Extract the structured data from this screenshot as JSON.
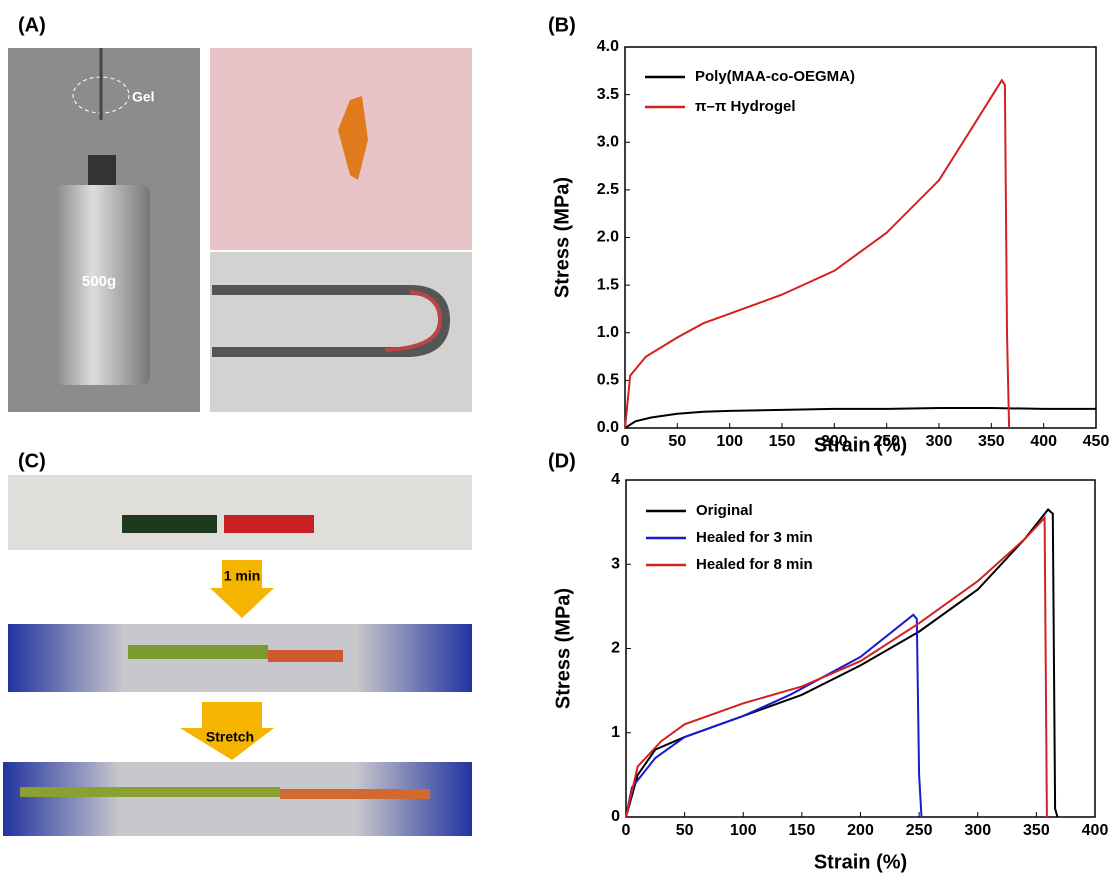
{
  "photos": {
    "panel_a": "(A)",
    "gel": "Gel",
    "weight": "500g",
    "panel_c": "(C)",
    "step1": "1 min",
    "step2": "Stretch"
  },
  "chart_data": [
    {
      "type": "line",
      "panel": "(B)",
      "x_label": "Strain (%)",
      "y_label": "Stress (MPa)",
      "legend": "upper left",
      "xlim": [
        0,
        450
      ],
      "xticks": [
        0,
        50,
        100,
        150,
        200,
        250,
        300,
        350,
        400,
        450
      ],
      "ylim": [
        0,
        4
      ],
      "yticks": [
        {
          "value": 0,
          "label": "0.0"
        },
        0.5,
        {
          "value": 1,
          "label": "1.0"
        },
        1.5,
        {
          "value": 2,
          "label": "2.0"
        },
        2.5,
        {
          "value": 3,
          "label": "3.0"
        },
        3.5,
        {
          "value": 4,
          "label": "4.0"
        }
      ],
      "series": [
        {
          "name": "Poly(MAA-co-OEGMA)",
          "color": "#000000",
          "x": [
            0,
            10,
            25,
            50,
            75,
            100,
            150,
            200,
            250,
            300,
            350,
            400,
            450
          ],
          "values": [
            0,
            0.07,
            0.11,
            0.15,
            0.17,
            0.18,
            0.19,
            0.2,
            0.2,
            0.21,
            0.21,
            0.2,
            0.2
          ]
        },
        {
          "name": "π–π Hydrogel",
          "color": "#d42020",
          "x": [
            0,
            5,
            20,
            50,
            75,
            100,
            150,
            200,
            250,
            300,
            340,
            360,
            363,
            365,
            367
          ],
          "values": [
            0,
            0.55,
            0.75,
            0.95,
            1.1,
            1.2,
            1.4,
            1.65,
            2.05,
            2.6,
            3.3,
            3.65,
            3.6,
            1.0,
            0
          ]
        }
      ]
    },
    {
      "type": "line",
      "panel": "(D)",
      "x_label": "Strain (%)",
      "y_label": "Stress (MPa)",
      "legend": "upper left",
      "xlim": [
        0,
        400
      ],
      "xticks": [
        0,
        50,
        100,
        150,
        200,
        250,
        300,
        350,
        400
      ],
      "ylim": [
        0,
        4
      ],
      "yticks": [
        0,
        1,
        2,
        3,
        4
      ],
      "series": [
        {
          "name": "Original",
          "color": "#000000",
          "x": [
            0,
            10,
            25,
            50,
            100,
            150,
            200,
            250,
            300,
            340,
            360,
            364,
            366,
            368
          ],
          "values": [
            0,
            0.5,
            0.8,
            0.95,
            1.2,
            1.45,
            1.8,
            2.2,
            2.7,
            3.3,
            3.65,
            3.6,
            0.1,
            0
          ]
        },
        {
          "name": "Healed for 3 min",
          "color": "#1a1ad0",
          "x": [
            0,
            5,
            25,
            50,
            100,
            140,
            200,
            245,
            248,
            250,
            252
          ],
          "values": [
            0,
            0.35,
            0.7,
            0.95,
            1.2,
            1.45,
            1.9,
            2.4,
            2.35,
            0.5,
            0
          ]
        },
        {
          "name": "Healed for 8 min",
          "color": "#d42020",
          "x": [
            0,
            10,
            30,
            50,
            100,
            150,
            200,
            250,
            300,
            340,
            357,
            359
          ],
          "values": [
            0,
            0.6,
            0.9,
            1.1,
            1.35,
            1.55,
            1.85,
            2.3,
            2.8,
            3.3,
            3.55,
            0
          ]
        }
      ]
    }
  ]
}
